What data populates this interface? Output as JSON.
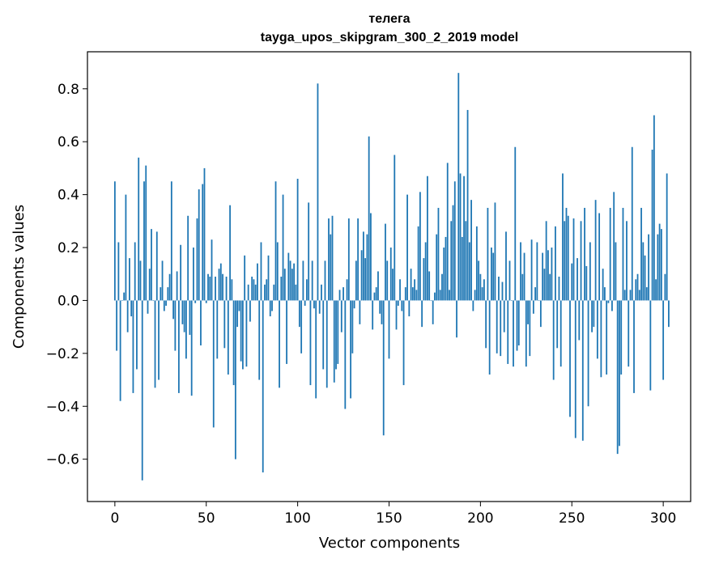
{
  "chart_data": {
    "type": "bar",
    "title": "телега",
    "subtitle": "tayga_upos_skipgram_300_2_2019 model",
    "xlabel": "Vector components",
    "ylabel": "Components values",
    "xlim": [
      -15,
      315
    ],
    "ylim": [
      -0.76,
      0.94
    ],
    "xticks": [
      0,
      50,
      100,
      150,
      200,
      250,
      300
    ],
    "xtick_labels": [
      "0",
      "50",
      "100",
      "150",
      "200",
      "250",
      "300"
    ],
    "yticks": [
      -0.6,
      -0.4,
      -0.2,
      0.0,
      0.2,
      0.4,
      0.6,
      0.8
    ],
    "ytick_labels": [
      "−0.6",
      "−0.4",
      "−0.2",
      "0.0",
      "0.2",
      "0.4",
      "0.6",
      "0.8"
    ],
    "bar_color": "#1f77b4",
    "grid": false,
    "legend": "none",
    "values": [
      0.45,
      -0.19,
      0.22,
      -0.38,
      0.0,
      0.03,
      0.4,
      -0.12,
      0.16,
      -0.06,
      -0.35,
      0.22,
      -0.26,
      0.54,
      0.15,
      -0.68,
      0.45,
      0.51,
      -0.05,
      0.12,
      0.27,
      0.0,
      -0.33,
      0.26,
      -0.3,
      0.05,
      0.15,
      -0.04,
      -0.02,
      0.05,
      0.1,
      0.45,
      -0.07,
      -0.19,
      0.11,
      -0.35,
      0.21,
      -0.09,
      -0.12,
      -0.22,
      0.32,
      -0.13,
      -0.36,
      0.2,
      -0.01,
      0.31,
      0.42,
      -0.17,
      0.44,
      0.5,
      -0.01,
      0.1,
      0.09,
      0.23,
      -0.48,
      0.09,
      -0.22,
      0.12,
      0.14,
      0.1,
      -0.18,
      0.09,
      -0.28,
      0.36,
      0.08,
      -0.32,
      -0.6,
      -0.1,
      -0.04,
      -0.23,
      -0.26,
      0.17,
      -0.25,
      0.06,
      -0.08,
      0.09,
      0.08,
      0.06,
      0.14,
      -0.3,
      0.22,
      -0.65,
      0.06,
      0.08,
      0.17,
      -0.06,
      -0.04,
      0.06,
      0.45,
      0.22,
      -0.33,
      0.09,
      0.4,
      0.12,
      -0.24,
      0.18,
      0.15,
      0.12,
      0.14,
      0.06,
      0.46,
      -0.1,
      -0.2,
      0.15,
      -0.02,
      0.08,
      0.37,
      -0.32,
      0.15,
      -0.03,
      -0.37,
      0.82,
      -0.05,
      0.06,
      -0.26,
      0.15,
      -0.33,
      0.31,
      0.25,
      0.32,
      -0.31,
      -0.26,
      -0.24,
      0.04,
      -0.12,
      0.05,
      -0.41,
      0.08,
      0.31,
      -0.37,
      -0.2,
      -0.03,
      0.15,
      0.31,
      -0.09,
      0.19,
      0.26,
      0.16,
      0.25,
      0.62,
      0.33,
      -0.11,
      0.03,
      0.05,
      0.11,
      -0.05,
      -0.09,
      -0.51,
      0.29,
      0.15,
      -0.22,
      0.2,
      0.12,
      0.55,
      -0.11,
      -0.02,
      0.08,
      -0.04,
      -0.32,
      0.05,
      0.4,
      -0.06,
      0.12,
      0.05,
      0.08,
      0.04,
      0.28,
      0.41,
      -0.1,
      0.16,
      0.22,
      0.47,
      0.11,
      0.0,
      -0.09,
      0.03,
      0.25,
      0.35,
      0.04,
      0.1,
      0.2,
      0.24,
      0.52,
      0.04,
      0.3,
      0.36,
      0.45,
      -0.14,
      0.86,
      0.48,
      0.24,
      0.47,
      0.3,
      0.72,
      0.22,
      0.38,
      -0.04,
      0.04,
      0.28,
      0.15,
      0.1,
      0.05,
      0.08,
      -0.18,
      0.35,
      -0.28,
      0.2,
      0.18,
      0.37,
      -0.2,
      0.09,
      -0.21,
      0.07,
      -0.12,
      0.26,
      -0.24,
      0.15,
      0.0,
      -0.25,
      0.58,
      -0.19,
      -0.17,
      0.22,
      0.1,
      0.18,
      -0.25,
      -0.09,
      -0.21,
      0.23,
      -0.05,
      0.05,
      0.22,
      0.0,
      -0.1,
      0.18,
      0.12,
      0.3,
      0.19,
      0.1,
      0.2,
      -0.3,
      0.28,
      -0.18,
      0.09,
      -0.25,
      0.48,
      0.3,
      0.35,
      0.32,
      -0.44,
      0.14,
      0.31,
      -0.52,
      0.16,
      -0.15,
      0.3,
      -0.53,
      0.35,
      0.13,
      -0.4,
      0.22,
      -0.12,
      -0.1,
      0.38,
      -0.22,
      0.33,
      -0.29,
      0.12,
      0.05,
      -0.28,
      -0.01,
      0.35,
      -0.04,
      0.41,
      0.22,
      -0.58,
      -0.55,
      -0.28,
      0.35,
      0.04,
      0.3,
      -0.25,
      0.04,
      0.58,
      -0.35,
      0.08,
      0.1,
      0.04,
      0.35,
      0.22,
      0.17,
      0.05,
      0.25,
      -0.34,
      0.57,
      0.7,
      0.08,
      0.25,
      0.29,
      0.27,
      -0.3,
      0.1,
      0.48,
      -0.1
    ]
  }
}
